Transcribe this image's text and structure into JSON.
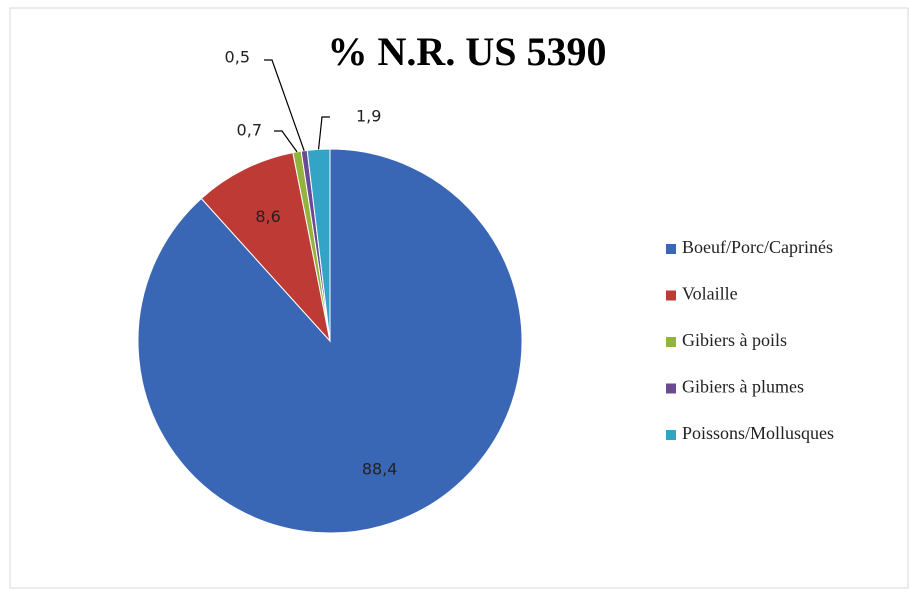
{
  "chart_data": {
    "type": "pie",
    "title": "% N.R. US 5390",
    "categories": [
      "Boeuf/Porc/Caprinés",
      "Volaille",
      "Gibiers à poils",
      "Gibiers à plumes",
      "Poissons/Mollusques"
    ],
    "values": [
      88.4,
      8.6,
      0.7,
      0.5,
      1.9
    ],
    "value_labels": [
      "88,4",
      "8,6",
      "0,7",
      "0,5",
      "1,9"
    ],
    "colors": [
      "#3a67b5",
      "#be3a35",
      "#93b33f",
      "#6a4a93",
      "#33a3c6"
    ],
    "legend": "right"
  }
}
